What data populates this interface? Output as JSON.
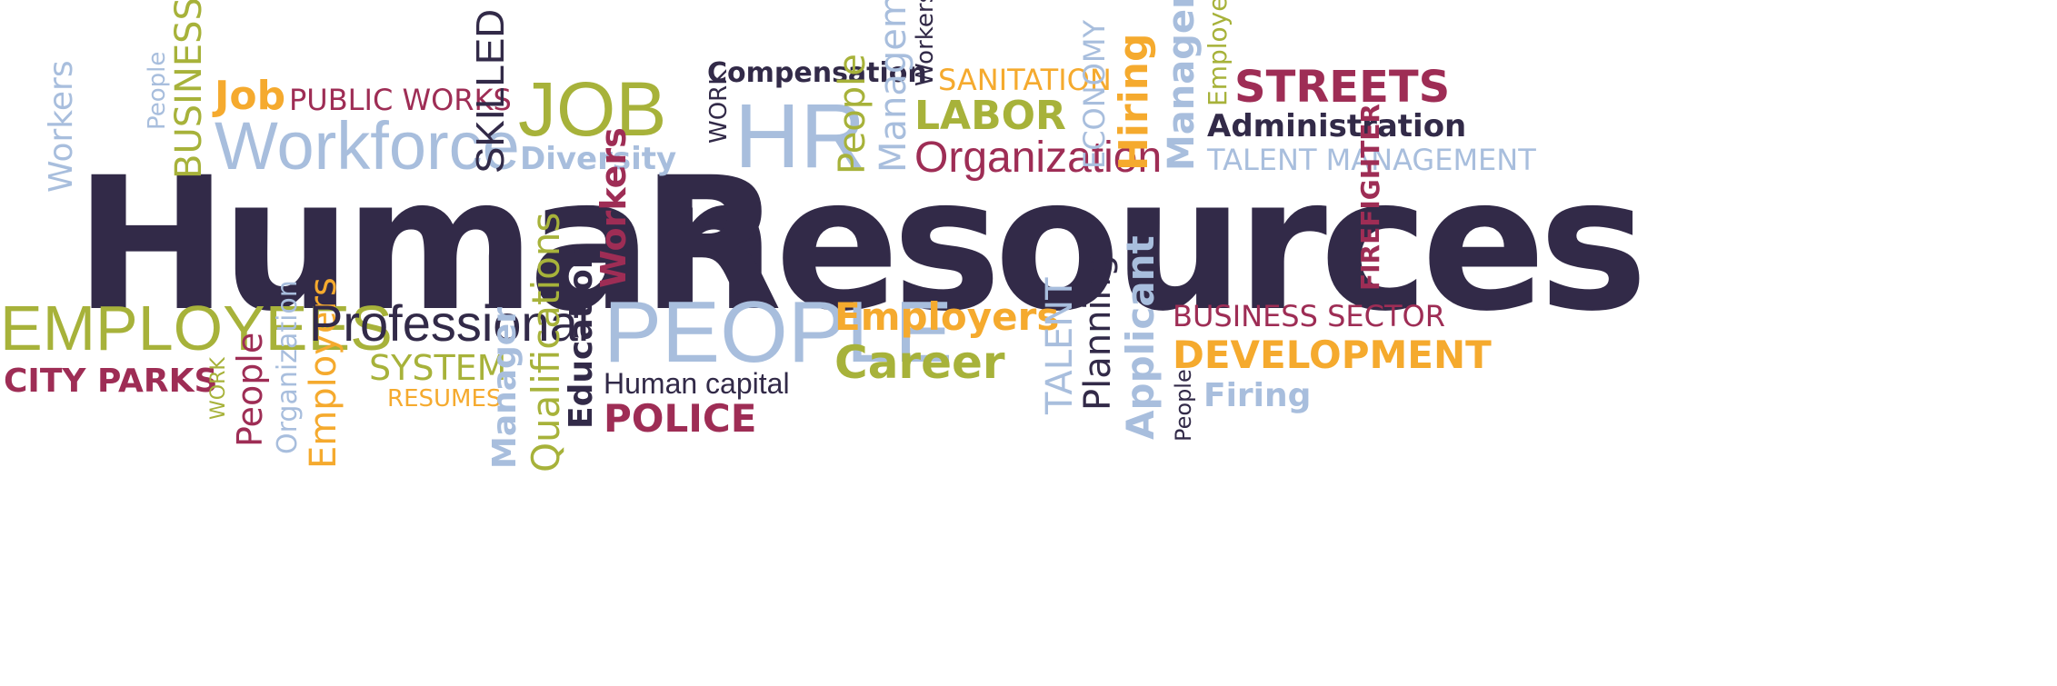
{
  "title": "Human Resources",
  "words": {
    "human": "Human",
    "resources": "Resources",
    "workers_left": "Workers",
    "people_top": "People",
    "business": "BUSINESS",
    "job_small": "Job",
    "public_works": "PUBLIC WORKS",
    "workforce": "Workforce",
    "skilled": "SKILLED",
    "job_big": "JOB",
    "diversity": "Diversity",
    "work_top": "WORK",
    "compensation": "Compensation",
    "hr": "HR",
    "people_mid": "People",
    "management_1": "Management",
    "workers_top": "Workers",
    "sanitation": "SANITATION",
    "labor": "LABOR",
    "organization_top": "Organization",
    "economy": "ECONOMY",
    "hiring": "Hiring",
    "management_2": "Management",
    "employees_top": "Employees",
    "streets": "STREETS",
    "administration": "Administration",
    "talent_management": "TALENT MANAGEMENT",
    "firefighter": "FIREFIGHTER",
    "workers_mid": "Workers",
    "employees_big": "EMPLOYEES",
    "city_parks": "CITY PARKS",
    "work_bottom": "WORK",
    "people_bottom": "People",
    "organization_bottom": "Organization",
    "employers_bottom": "Employers",
    "professional": "Professional",
    "system": "SYSTEM",
    "resumes": "RESUMES",
    "manager": "Manager",
    "qualifications": "Qualifications",
    "education": "Education",
    "people_big": "PEOPLE",
    "human_capital": "Human capital",
    "police": "POLICE",
    "employers": "Employers",
    "career": "Career",
    "talent": "TALENT",
    "planning": "Planning",
    "applicant": "Applicant",
    "people_small": "People",
    "business_sector": "BUSINESS SECTOR",
    "development": "DEVELOPMENT",
    "firing": "Firing"
  },
  "colors": {
    "navy": "#322a48",
    "light_blue": "#a8bedd",
    "olive": "#a7b23a",
    "orange": "#f5aa2e",
    "maroon": "#9e2d55"
  }
}
